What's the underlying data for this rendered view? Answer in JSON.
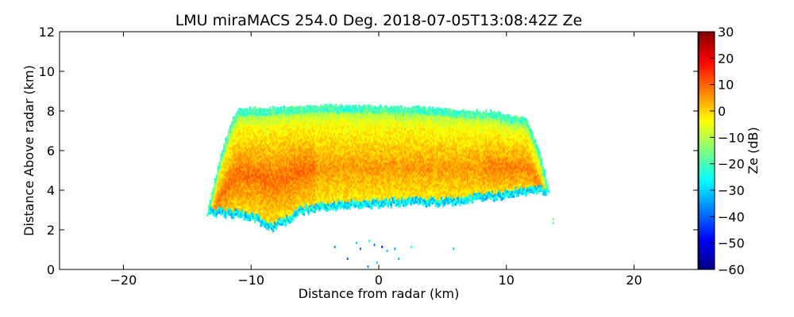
{
  "chart_data": {
    "type": "heatmap",
    "title": "LMU miraMACS 254.0 Deg. 2018-07-05T13:08:42Z  Ze",
    "xlabel": "Distance from radar (km)",
    "ylabel": "Distance Above radar  (km)",
    "xlim": [
      -25,
      25
    ],
    "ylim": [
      0,
      12
    ],
    "x_ticks": [
      -20,
      -10,
      0,
      10,
      20
    ],
    "y_ticks": [
      0,
      2,
      4,
      6,
      8,
      10,
      12
    ],
    "x_tick_labels": [
      "−20",
      "−10",
      "0",
      "10",
      "20"
    ],
    "y_tick_labels": [
      "0",
      "2",
      "4",
      "6",
      "8",
      "10",
      "12"
    ],
    "colorbar": {
      "label": "Ze (dB)",
      "range": [
        -60,
        30
      ],
      "ticks": [
        30,
        20,
        10,
        0,
        -10,
        -20,
        -30,
        -40,
        -50,
        -60
      ],
      "tick_labels": [
        "30",
        "20",
        "10",
        "0",
        "−10",
        "−20",
        "−30",
        "−40",
        "−50",
        "−60"
      ],
      "colormap": "jet",
      "colormap_stops": [
        "#00007f",
        "#0000ff",
        "#007fff",
        "#00ffff",
        "#7fff7f",
        "#ffff00",
        "#ff7f00",
        "#ff0000",
        "#7f0000"
      ]
    },
    "echo": {
      "description_values": "cloud layer reflectivity in dB",
      "top_profile_km": [
        [
          -13.5,
          2.8
        ],
        [
          -12.5,
          5.6
        ],
        [
          -11.5,
          7.6
        ],
        [
          -11,
          8.05
        ],
        [
          -8,
          8.1
        ],
        [
          -4,
          8.25
        ],
        [
          0,
          8.2
        ],
        [
          4,
          8.1
        ],
        [
          9,
          7.9
        ],
        [
          11.5,
          7.6
        ],
        [
          12.5,
          6.0
        ],
        [
          13.3,
          3.8
        ]
      ],
      "base_profile_km": [
        [
          -13.5,
          2.7
        ],
        [
          -11,
          2.6
        ],
        [
          -9.5,
          2.3
        ],
        [
          -8.5,
          1.9
        ],
        [
          -7.5,
          2.2
        ],
        [
          -6,
          2.8
        ],
        [
          -4,
          3.0
        ],
        [
          -1,
          3.1
        ],
        [
          2,
          3.2
        ],
        [
          5,
          3.2
        ],
        [
          8,
          3.4
        ],
        [
          10,
          3.6
        ],
        [
          12,
          3.8
        ],
        [
          13.3,
          3.8
        ]
      ],
      "core_value_db": 5,
      "mid_value_db": 0,
      "edge_value_db": -20,
      "base_value_db": -35,
      "speckles": [
        {
          "x": -3.5,
          "y": 1.2,
          "v": -35
        },
        {
          "x": -1.8,
          "y": 1.4,
          "v": -30
        },
        {
          "x": -1.5,
          "y": 1.1,
          "v": -40
        },
        {
          "x": -0.8,
          "y": 1.5,
          "v": -25
        },
        {
          "x": -0.4,
          "y": 1.3,
          "v": -38
        },
        {
          "x": 0.2,
          "y": 1.2,
          "v": -45
        },
        {
          "x": 0.6,
          "y": 1.0,
          "v": -30
        },
        {
          "x": 1.2,
          "y": 1.1,
          "v": -35
        },
        {
          "x": 2.5,
          "y": 1.2,
          "v": -25
        },
        {
          "x": 1.5,
          "y": 0.6,
          "v": -30
        },
        {
          "x": -0.2,
          "y": 0.4,
          "v": -28
        },
        {
          "x": -2.5,
          "y": 0.6,
          "v": -40
        },
        {
          "x": 5.8,
          "y": 1.1,
          "v": -30
        },
        {
          "x": -0.9,
          "y": 0.2,
          "v": -35
        },
        {
          "x": 13.6,
          "y": 2.6,
          "v": -15
        },
        {
          "x": 13.6,
          "y": 2.4,
          "v": -18
        }
      ]
    }
  }
}
